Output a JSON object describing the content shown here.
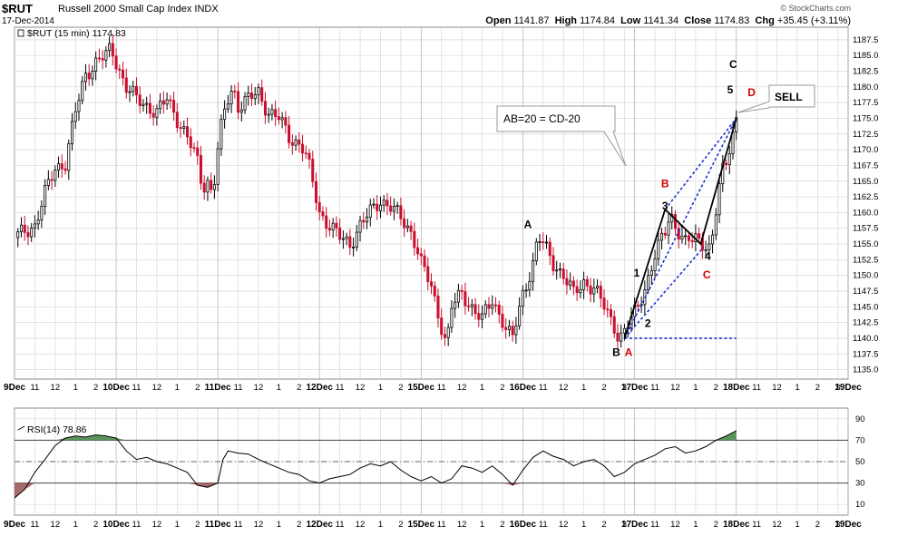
{
  "header": {
    "symbol": "$RUT",
    "name": "Russell 2000 Small Cap Index",
    "exchange": "INDX",
    "date": "17-Dec-2014",
    "brand": "© StockCharts.com",
    "open_label": "Open",
    "open": "1141.87",
    "high_label": "High",
    "high": "1174.84",
    "low_label": "Low",
    "low": "1141.34",
    "close_label": "Close",
    "close": "1174.83",
    "chg_label": "Chg",
    "chg": "+35.45 (+3.11%)"
  },
  "chart_data": [
    {
      "type": "candlestick",
      "legend": "$RUT (15 min) 1174.83",
      "ylim": [
        1133.5,
        1189.5
      ],
      "yticks": [
        1135.0,
        1137.5,
        1140.0,
        1142.5,
        1145.0,
        1147.5,
        1150.0,
        1152.5,
        1155.0,
        1157.5,
        1160.0,
        1162.5,
        1165.0,
        1167.5,
        1170.0,
        1172.5,
        1175.0,
        1177.5,
        1180.0,
        1182.5,
        1185.0,
        1187.5
      ],
      "x_labels": [
        "9Dec",
        "11",
        "12",
        "1",
        "2",
        "10Dec",
        "11",
        "12",
        "1",
        "2",
        "11Dec",
        "11",
        "12",
        "1",
        "2",
        "12Dec",
        "11",
        "12",
        "1",
        "2",
        "15Dec",
        "11",
        "12",
        "1",
        "2",
        "16Dec",
        "11",
        "12",
        "1",
        "2",
        "3",
        "17Dec",
        "11",
        "12",
        "1",
        "2",
        "18Dec",
        "11",
        "12",
        "1",
        "2",
        "3",
        "19Dec"
      ],
      "x_label_slots": [
        0,
        2,
        4,
        6,
        8,
        10,
        12,
        14,
        16,
        18,
        20,
        22,
        24,
        26,
        28,
        30,
        32,
        34,
        36,
        38,
        40,
        42,
        44,
        46,
        48,
        50,
        52,
        54,
        56,
        58,
        60,
        61,
        63,
        65,
        67,
        69,
        71,
        73,
        75,
        77,
        79,
        81,
        82
      ],
      "day_labels": [
        "9Dec",
        "10Dec",
        "11Dec",
        "12Dec",
        "15Dec",
        "16Dec",
        "17Dec",
        "18Dec",
        "19Dec"
      ],
      "close_path": [
        [
          0,
          1156
        ],
        [
          2,
          1158
        ],
        [
          3,
          1163
        ],
        [
          4,
          1167
        ],
        [
          5,
          1168
        ],
        [
          6,
          1176
        ],
        [
          7,
          1182
        ],
        [
          8,
          1184
        ],
        [
          9,
          1185
        ],
        [
          9.5,
          1186
        ],
        [
          10,
          1184
        ],
        [
          11,
          1180
        ],
        [
          12,
          1178
        ],
        [
          13,
          1177
        ],
        [
          14,
          1176
        ],
        [
          15,
          1178
        ],
        [
          16,
          1175
        ],
        [
          17,
          1172
        ],
        [
          18,
          1168
        ],
        [
          18.5,
          1164
        ],
        [
          19,
          1165
        ],
        [
          19.5,
          1163
        ],
        [
          20,
          1170
        ],
        [
          20.5,
          1175
        ],
        [
          21,
          1178
        ],
        [
          21.5,
          1180
        ],
        [
          22,
          1177
        ],
        [
          23,
          1178
        ],
        [
          24,
          1179
        ],
        [
          25,
          1176
        ],
        [
          26,
          1175
        ],
        [
          27,
          1172
        ],
        [
          28,
          1171
        ],
        [
          28.5,
          1170
        ],
        [
          29,
          1167
        ],
        [
          30,
          1160
        ],
        [
          31,
          1158
        ],
        [
          32,
          1156
        ],
        [
          33,
          1155
        ],
        [
          34,
          1158
        ],
        [
          35,
          1160
        ],
        [
          36,
          1162
        ],
        [
          37,
          1161
        ],
        [
          38,
          1159
        ],
        [
          39,
          1157
        ],
        [
          39.5,
          1155
        ],
        [
          40,
          1152
        ],
        [
          41,
          1148
        ],
        [
          42,
          1142
        ],
        [
          42.5,
          1139
        ],
        [
          43,
          1145
        ],
        [
          44,
          1147
        ],
        [
          45,
          1145
        ],
        [
          46,
          1143
        ],
        [
          47,
          1146
        ],
        [
          48,
          1143
        ],
        [
          48.5,
          1141
        ],
        [
          49,
          1140
        ],
        [
          50,
          1147
        ],
        [
          51,
          1152
        ],
        [
          51.5,
          1156
        ],
        [
          52,
          1155
        ],
        [
          53,
          1152
        ],
        [
          54,
          1150
        ],
        [
          55,
          1147
        ],
        [
          56,
          1149
        ],
        [
          57,
          1148
        ],
        [
          58,
          1145
        ],
        [
          59,
          1142
        ],
        [
          59.5,
          1140
        ],
        [
          60,
          1141
        ],
        [
          61,
          1144
        ],
        [
          62,
          1148
        ],
        [
          63,
          1153
        ],
        [
          64,
          1157
        ],
        [
          64.5,
          1160
        ],
        [
          65,
          1158
        ],
        [
          66,
          1155
        ],
        [
          67,
          1156
        ],
        [
          68,
          1155
        ],
        [
          68.5,
          1154
        ],
        [
          69,
          1160
        ],
        [
          69.5,
          1166
        ],
        [
          70,
          1168
        ],
        [
          70.5,
          1172
        ],
        [
          71,
          1174.83
        ]
      ],
      "annotations": [
        {
          "text": "A",
          "x": 50.5,
          "y": 1157.5,
          "color": "#000000"
        },
        {
          "text": "B",
          "x": 59.2,
          "y": 1137.2,
          "color": "#000000"
        },
        {
          "text": "A",
          "x": 60.4,
          "y": 1137.2,
          "color": "#d40000"
        },
        {
          "text": "1",
          "x": 61.2,
          "y": 1149.8,
          "color": "#000000"
        },
        {
          "text": "2",
          "x": 62.3,
          "y": 1141.8,
          "color": "#000000"
        },
        {
          "text": "3",
          "x": 64.0,
          "y": 1160.5,
          "color": "#000000"
        },
        {
          "text": "B",
          "x": 64.0,
          "y": 1164.0,
          "color": "#d40000"
        },
        {
          "text": "4",
          "x": 68.2,
          "y": 1152.5,
          "color": "#000000"
        },
        {
          "text": "C",
          "x": 68.1,
          "y": 1149.5,
          "color": "#d40000"
        },
        {
          "text": "5",
          "x": 70.4,
          "y": 1179.0,
          "color": "#000000"
        },
        {
          "text": "C",
          "x": 70.7,
          "y": 1183.0,
          "color": "#000000"
        },
        {
          "text": "D",
          "x": 72.5,
          "y": 1178.5,
          "color": "#d40000"
        }
      ],
      "callouts": [
        {
          "text": "AB=20 = CD-20"
        },
        {
          "text": "SELL"
        }
      ],
      "pattern_lines_black": [
        [
          [
            60,
            1140
          ],
          [
            64,
            1160.5
          ],
          [
            67.5,
            1155
          ],
          [
            71,
            1175
          ]
        ]
      ],
      "pattern_lines_blue_dashed": [
        [
          [
            60,
            1140
          ],
          [
            71,
            1175
          ]
        ],
        [
          [
            64,
            1160.5
          ],
          [
            71,
            1175
          ]
        ],
        [
          [
            60,
            1140
          ],
          [
            67.8,
            1154.5
          ]
        ],
        [
          [
            60,
            1140
          ],
          [
            71,
            1140
          ]
        ]
      ]
    },
    {
      "type": "line",
      "legend": "RSI(14) 78.86",
      "ylim": [
        0,
        100
      ],
      "yticks": [
        10,
        30,
        50,
        70,
        90
      ],
      "hlines": [
        30,
        50,
        70
      ],
      "values": [
        [
          0,
          16
        ],
        [
          1,
          24
        ],
        [
          2,
          40
        ],
        [
          3,
          52
        ],
        [
          4,
          65
        ],
        [
          5,
          72
        ],
        [
          6,
          74
        ],
        [
          7,
          73
        ],
        [
          8,
          75
        ],
        [
          9,
          74
        ],
        [
          10,
          72
        ],
        [
          11,
          60
        ],
        [
          12,
          52
        ],
        [
          13,
          54
        ],
        [
          14,
          50
        ],
        [
          15,
          48
        ],
        [
          16,
          44
        ],
        [
          17,
          40
        ],
        [
          18,
          28
        ],
        [
          19,
          26
        ],
        [
          20,
          30
        ],
        [
          20.5,
          52
        ],
        [
          21,
          60
        ],
        [
          22,
          58
        ],
        [
          23,
          57
        ],
        [
          24,
          52
        ],
        [
          25,
          48
        ],
        [
          26,
          44
        ],
        [
          27,
          40
        ],
        [
          28,
          38
        ],
        [
          29,
          32
        ],
        [
          30,
          30
        ],
        [
          31,
          34
        ],
        [
          32,
          36
        ],
        [
          33,
          38
        ],
        [
          34,
          44
        ],
        [
          35,
          48
        ],
        [
          36,
          46
        ],
        [
          37,
          50
        ],
        [
          38,
          42
        ],
        [
          39,
          36
        ],
        [
          40,
          32
        ],
        [
          41,
          36
        ],
        [
          42,
          30
        ],
        [
          43,
          34
        ],
        [
          44,
          46
        ],
        [
          45,
          44
        ],
        [
          46,
          40
        ],
        [
          47,
          46
        ],
        [
          48,
          38
        ],
        [
          49,
          28
        ],
        [
          50,
          42
        ],
        [
          51,
          54
        ],
        [
          52,
          60
        ],
        [
          53,
          55
        ],
        [
          54,
          52
        ],
        [
          55,
          46
        ],
        [
          56,
          50
        ],
        [
          57,
          52
        ],
        [
          58,
          46
        ],
        [
          59,
          36
        ],
        [
          60,
          40
        ],
        [
          61,
          48
        ],
        [
          62,
          52
        ],
        [
          63,
          56
        ],
        [
          64,
          62
        ],
        [
          65,
          64
        ],
        [
          66,
          58
        ],
        [
          67,
          60
        ],
        [
          68,
          64
        ],
        [
          69,
          70
        ],
        [
          70,
          74
        ],
        [
          71,
          78.86
        ]
      ]
    }
  ],
  "colors": {
    "up": "#000000",
    "down": "#c8102e",
    "grid": "#d8d8d8",
    "blue": "#1a2fd4",
    "rsi_over": "#4a8a4a",
    "rsi_under": "#a05a5a"
  }
}
